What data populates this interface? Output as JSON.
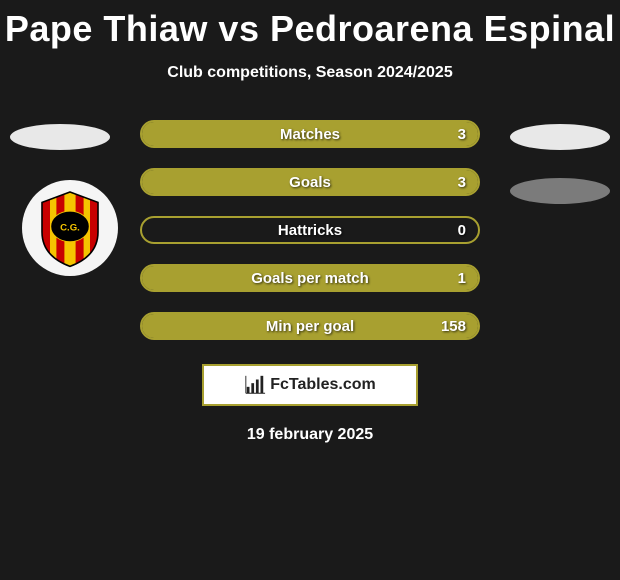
{
  "title": "Pape Thiaw vs Pedroarena Espinal",
  "subtitle": "Club competitions, Season 2024/2025",
  "colors": {
    "bar_border": "#a8a030",
    "bar_fill": "#a8a030",
    "background": "#1a1a1a",
    "text": "#ffffff"
  },
  "stats": [
    {
      "label": "Matches",
      "value": "3",
      "fill_pct": 100
    },
    {
      "label": "Goals",
      "value": "3",
      "fill_pct": 100
    },
    {
      "label": "Hattricks",
      "value": "0",
      "fill_pct": 0
    },
    {
      "label": "Goals per match",
      "value": "1",
      "fill_pct": 100
    },
    {
      "label": "Min per goal",
      "value": "158",
      "fill_pct": 100
    }
  ],
  "brand": "FcTables.com",
  "date": "19 february 2025",
  "ellipses": {
    "top_left_color": "#e8e8e8",
    "top_right_color": "#e8e8e8",
    "bottom_right_color": "#7b7b7b"
  },
  "club_logo": {
    "stripe_color": "#c80000",
    "bg_color": "#f5c400",
    "center_color": "#000000"
  }
}
